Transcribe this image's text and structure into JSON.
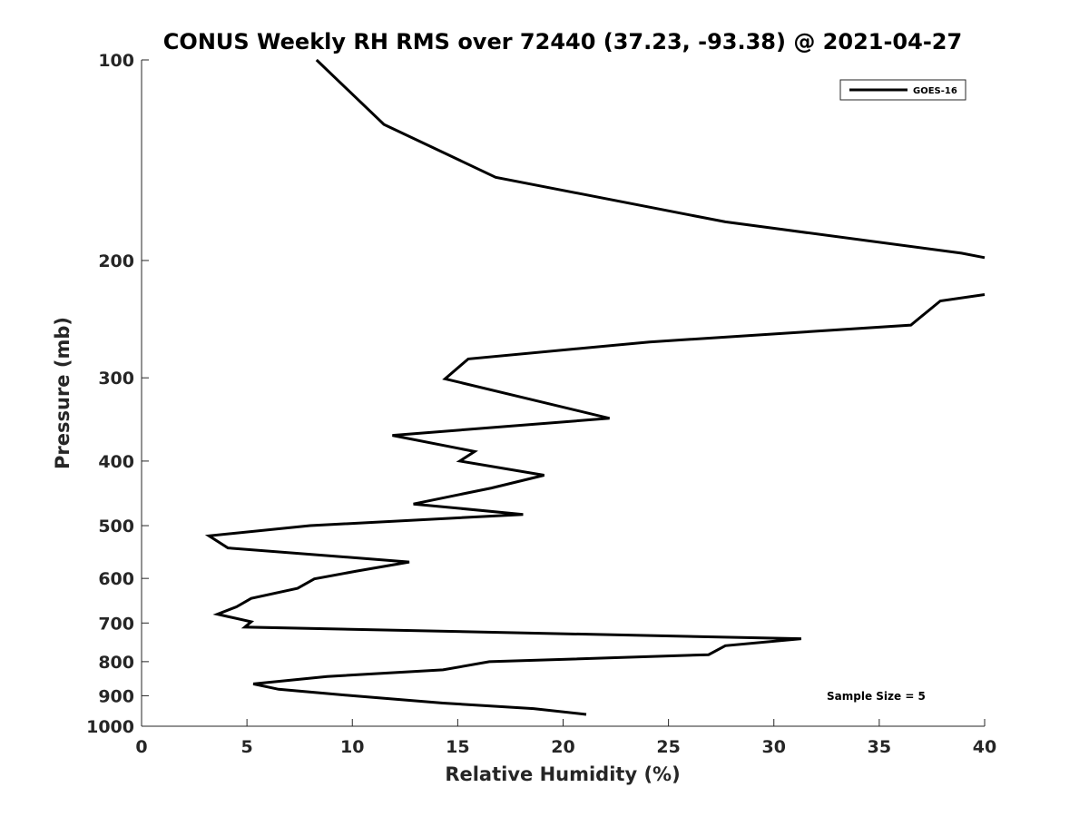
{
  "chart_data": {
    "type": "line",
    "title": "CONUS Weekly RH RMS over 72440 (37.23, -93.38) @ 2021-04-27",
    "xlabel": "Relative Humidity (%)",
    "ylabel": "Pressure (mb)",
    "xlim": [
      0,
      40
    ],
    "ylim": [
      100,
      1000
    ],
    "y_scale": "log",
    "y_reversed": true,
    "x_ticks": [
      0,
      5,
      10,
      15,
      20,
      25,
      30,
      35,
      40
    ],
    "y_ticks": [
      100,
      200,
      300,
      400,
      500,
      600,
      700,
      800,
      900,
      1000
    ],
    "x_tick_labels": [
      "0",
      "5",
      "10",
      "15",
      "20",
      "25",
      "30",
      "35",
      "40"
    ],
    "y_tick_labels": [
      "100",
      "200",
      "300",
      "400",
      "500",
      "600",
      "700",
      "800",
      "900",
      "1000"
    ],
    "grid": false,
    "legend_position": "top-right",
    "annotation": "Sample Size = 5",
    "series": [
      {
        "name": "GOES-16",
        "color": "#000000",
        "segments": [
          [
            {
              "x": 8.3,
              "y": 100
            },
            {
              "x": 11.5,
              "y": 125
            },
            {
              "x": 16.8,
              "y": 150
            },
            {
              "x": 27.7,
              "y": 175
            },
            {
              "x": 38.9,
              "y": 195
            },
            {
              "x": 40.0,
              "y": 198
            }
          ],
          [
            {
              "x": 40.0,
              "y": 225
            },
            {
              "x": 37.9,
              "y": 230
            },
            {
              "x": 36.5,
              "y": 250
            },
            {
              "x": 24.1,
              "y": 265
            },
            {
              "x": 15.5,
              "y": 281
            },
            {
              "x": 14.4,
              "y": 301
            },
            {
              "x": 22.2,
              "y": 345
            },
            {
              "x": 11.9,
              "y": 366
            },
            {
              "x": 15.8,
              "y": 387
            },
            {
              "x": 15.1,
              "y": 400
            },
            {
              "x": 19.1,
              "y": 420
            },
            {
              "x": 16.6,
              "y": 439
            },
            {
              "x": 12.9,
              "y": 464
            },
            {
              "x": 18.1,
              "y": 481
            },
            {
              "x": 8.0,
              "y": 500
            },
            {
              "x": 3.2,
              "y": 518
            },
            {
              "x": 4.1,
              "y": 540
            },
            {
              "x": 12.7,
              "y": 567
            },
            {
              "x": 10.2,
              "y": 585
            },
            {
              "x": 8.2,
              "y": 601
            },
            {
              "x": 7.4,
              "y": 621
            },
            {
              "x": 5.2,
              "y": 643
            },
            {
              "x": 4.5,
              "y": 662
            },
            {
              "x": 3.6,
              "y": 679
            },
            {
              "x": 5.2,
              "y": 697
            },
            {
              "x": 4.9,
              "y": 710
            },
            {
              "x": 31.3,
              "y": 739
            },
            {
              "x": 27.7,
              "y": 757
            },
            {
              "x": 26.9,
              "y": 781
            },
            {
              "x": 16.5,
              "y": 800
            },
            {
              "x": 14.3,
              "y": 823
            },
            {
              "x": 8.8,
              "y": 842
            },
            {
              "x": 5.3,
              "y": 864
            },
            {
              "x": 6.5,
              "y": 880
            },
            {
              "x": 10.0,
              "y": 900
            },
            {
              "x": 14.3,
              "y": 923
            },
            {
              "x": 18.6,
              "y": 941
            },
            {
              "x": 21.1,
              "y": 960
            }
          ]
        ]
      }
    ]
  }
}
